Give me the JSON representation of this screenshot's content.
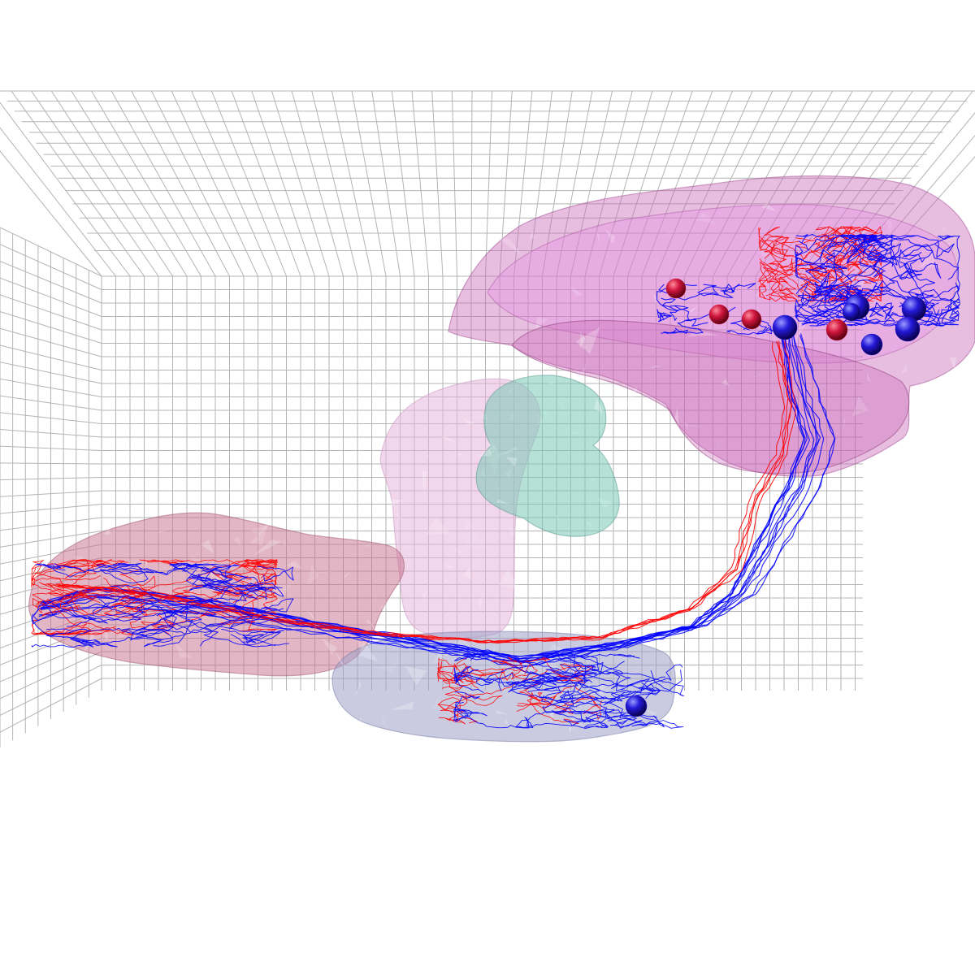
{
  "scene": {
    "description_visible_text": "",
    "colors": {
      "background": "#ffffff",
      "grid": "#b4b4b4",
      "region_upper_right": "#c864b4",
      "region_upper_right_inner": "#e68ce6",
      "region_center_column": "#e6b4dc",
      "region_left": "#c86e8c",
      "region_bottom": "#9ea0c8",
      "region_teal": "#78c8b4",
      "neuron_red": "#ff0000",
      "neuron_blue": "#0000ff",
      "soma_red": "#c8143c",
      "soma_blue": "#1e14d2"
    },
    "somata": {
      "red_count": 4,
      "blue_count": 7
    }
  }
}
